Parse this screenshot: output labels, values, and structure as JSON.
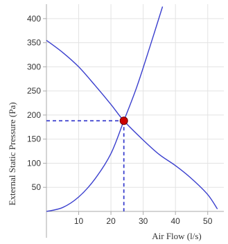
{
  "chart_data": {
    "type": "line",
    "title": "",
    "xlabel": "Air Flow (l/s)",
    "ylabel": "External Static Pressure (Pa)",
    "xlim": [
      0,
      55
    ],
    "ylim": [
      0,
      430
    ],
    "x_ticks": [
      10,
      20,
      30,
      40,
      50
    ],
    "y_ticks": [
      50,
      100,
      150,
      200,
      250,
      300,
      350,
      400
    ],
    "grid": true,
    "legend": "none",
    "series": [
      {
        "x": [
          0,
          5,
          10,
          15,
          20,
          24,
          30,
          35,
          40,
          45,
          50,
          53
        ],
        "y": [
          355,
          330,
          300,
          262,
          222,
          188,
          148,
          118,
          95,
          68,
          35,
          5
        ],
        "color": "#3a3fce"
      },
      {
        "x": [
          0,
          5,
          10,
          15,
          20,
          24,
          28,
          32,
          36
        ],
        "y": [
          0,
          8,
          30,
          67,
          120,
          188,
          258,
          340,
          425
        ],
        "color": "#3a3fce"
      }
    ],
    "operating_point": {
      "x": 24,
      "y": 188,
      "color": "#cc0000"
    }
  }
}
